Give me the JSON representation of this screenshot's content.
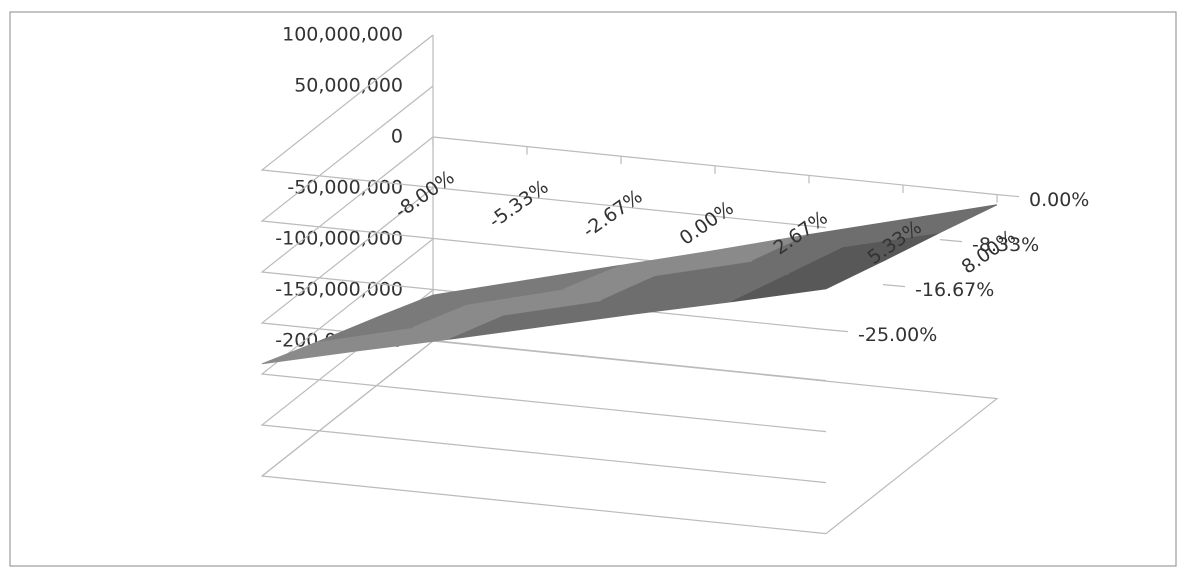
{
  "chart_data": {
    "type": "surface",
    "categories": [
      "-8.00%",
      "-5.33%",
      "-2.67%",
      "0.00%",
      "2.67%",
      "5.33%",
      "8.00%"
    ],
    "depth_categories": [
      "-25.00%",
      "-16.67%",
      "-8.33%",
      "0.00%"
    ],
    "values": [
      [
        -90000000,
        -68000000,
        -47000000,
        -25000000,
        -3000000,
        18000000,
        40000000
      ],
      [
        -112000000,
        -89000000,
        -67000000,
        -44000000,
        -22000000,
        1000000,
        23000000
      ],
      [
        -133000000,
        -110000000,
        -86000000,
        -63000000,
        -40000000,
        -16000000,
        7000000
      ],
      [
        -155000000,
        -131000000,
        -107000000,
        -83000000,
        -58000000,
        -34000000,
        -10000000
      ]
    ],
    "zlim": [
      -200000000,
      100000000
    ],
    "zticks": [
      {
        "value": -200000000,
        "label": "-200,000,000"
      },
      {
        "value": -150000000,
        "label": "-150,000,000"
      },
      {
        "value": -100000000,
        "label": "-100,000,000"
      },
      {
        "value": -50000000,
        "label": "-50,000,000"
      },
      0,
      {
        "value": 50000000,
        "label": "50,000,000"
      },
      {
        "value": 100000000,
        "label": "100,000,000"
      }
    ],
    "band_colors": [
      "#6a6a6a",
      "#7a7a7a",
      "#8a8a8a",
      "#6e6e6e",
      "#585858",
      "#3e3e3e"
    ],
    "grid": true
  }
}
